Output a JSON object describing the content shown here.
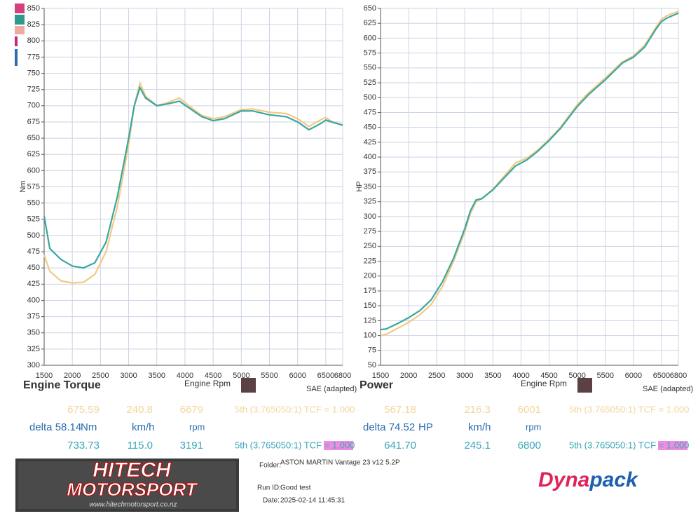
{
  "chart_data": [
    {
      "type": "line",
      "title": "Engine Torque",
      "x_label": "Engine Rpm",
      "y_label": "Nm",
      "note": "SAE (adapted)",
      "x": [
        1500,
        1600,
        1800,
        2000,
        2200,
        2400,
        2600,
        2800,
        3000,
        3100,
        3200,
        3300,
        3500,
        3700,
        3900,
        4100,
        4300,
        4500,
        4700,
        5000,
        5200,
        5500,
        5800,
        6000,
        6200,
        6400,
        6500,
        6600,
        6800
      ],
      "series": [
        {
          "color": "#f3c984",
          "values": [
            470,
            445,
            430,
            427,
            428,
            440,
            475,
            545,
            640,
            700,
            735,
            715,
            700,
            705,
            712,
            698,
            685,
            680,
            683,
            694,
            695,
            690,
            688,
            680,
            668,
            678,
            682,
            676,
            670
          ]
        },
        {
          "color": "#3aa7a0",
          "values": [
            530,
            480,
            463,
            453,
            450,
            458,
            490,
            560,
            650,
            700,
            728,
            712,
            700,
            703,
            707,
            695,
            683,
            677,
            680,
            692,
            692,
            686,
            683,
            675,
            663,
            672,
            678,
            675,
            670
          ]
        }
      ],
      "xlim": [
        1500,
        6800
      ],
      "xticks": [
        1500,
        2000,
        2500,
        3000,
        3500,
        4000,
        4500,
        5000,
        5500,
        6000,
        6500,
        6800
      ],
      "ylim": [
        300,
        850
      ],
      "yticks": [
        300,
        325,
        350,
        375,
        400,
        425,
        450,
        475,
        500,
        525,
        550,
        575,
        600,
        625,
        650,
        675,
        700,
        725,
        750,
        775,
        800,
        825,
        850
      ],
      "grid": true,
      "readouts": {
        "run_a": [
          "675.59",
          "240.8",
          "6679",
          "5th (3.765050:1) TCF = 1.000"
        ],
        "delta": [
          "delta 58.14",
          "Nm",
          "km/h",
          "rpm"
        ],
        "run_b": [
          "733.73",
          "115.0",
          "3191",
          "5th (3.765050:1) TCF = 1.000"
        ]
      }
    },
    {
      "type": "line",
      "title": "Power",
      "x_label": "Engine Rpm",
      "y_label": "HP",
      "note": "SAE (adapted)",
      "x": [
        1500,
        1600,
        1800,
        2000,
        2200,
        2400,
        2600,
        2800,
        3000,
        3100,
        3200,
        3300,
        3500,
        3700,
        3900,
        4100,
        4300,
        4500,
        4700,
        5000,
        5200,
        5500,
        5800,
        6000,
        6200,
        6400,
        6500,
        6600,
        6800
      ],
      "series": [
        {
          "color": "#f3c984",
          "values": [
            100,
            102,
            112,
            122,
            135,
            152,
            182,
            225,
            275,
            305,
            325,
            330,
            346,
            368,
            390,
            398,
            412,
            430,
            450,
            488,
            508,
            533,
            560,
            570,
            588,
            618,
            632,
            638,
            645
          ]
        },
        {
          "color": "#3aa7a0",
          "values": [
            110,
            111,
            120,
            130,
            142,
            160,
            190,
            230,
            280,
            310,
            328,
            330,
            345,
            365,
            385,
            395,
            410,
            428,
            448,
            485,
            505,
            530,
            558,
            568,
            585,
            615,
            628,
            634,
            642
          ]
        }
      ],
      "xlim": [
        1500,
        6800
      ],
      "xticks": [
        1500,
        2000,
        2500,
        3000,
        3500,
        4000,
        4500,
        5000,
        5500,
        6000,
        6500,
        6800
      ],
      "ylim": [
        50,
        650
      ],
      "yticks": [
        50,
        75,
        100,
        125,
        150,
        175,
        200,
        225,
        250,
        275,
        300,
        325,
        350,
        375,
        400,
        425,
        450,
        475,
        500,
        525,
        550,
        575,
        600,
        625,
        650
      ],
      "grid": true,
      "readouts": {
        "run_a": [
          "567.18",
          "216.3",
          "6001",
          "5th (3.765050:1) TCF = 1.000"
        ],
        "delta": [
          "delta 74.52",
          "HP",
          "km/h",
          "rpm"
        ],
        "run_b": [
          "641.70",
          "245.1",
          "6800",
          "5th (3.765050:1) TCF = 1.000"
        ]
      }
    }
  ],
  "footer": {
    "logo_top": "HITECH",
    "logo_bottom": "MOTORSPORT",
    "logo_url": "www.hitechmotorsport.co.nz",
    "folder_label": "Folder:",
    "folder": "ASTON MARTIN Vantage 23 v12 5.2P",
    "run_label": "Run ID:",
    "run": "Good test",
    "date_label": "Date:",
    "date": "2025-02-14 11:45:31",
    "brand_a": "Dyna",
    "brand_b": "pack"
  }
}
